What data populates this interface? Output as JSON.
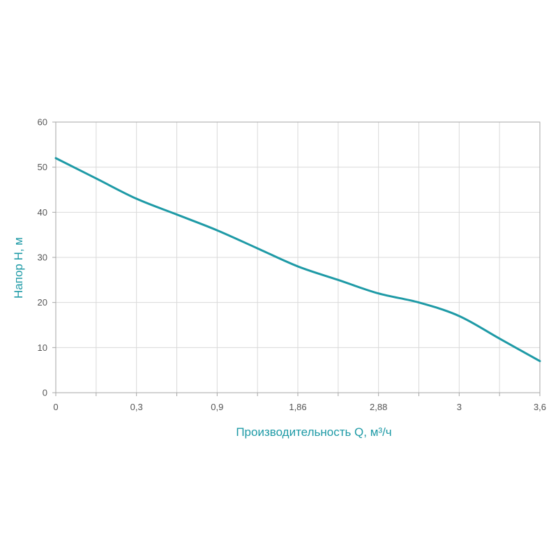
{
  "chart_data": {
    "type": "line",
    "xlabel": "Производительность Q, м³/ч",
    "ylabel": "Напор H, м",
    "x_tick_labels": [
      "0",
      "0,3",
      "0,9",
      "1,86",
      "2,88",
      "3",
      "3,6"
    ],
    "y_ticks": [
      0,
      10,
      20,
      30,
      40,
      50,
      60
    ],
    "ylim": [
      0,
      60
    ],
    "grid": true,
    "series": [
      {
        "x_ticks_index": [
          0,
          0.5,
          1,
          1.5,
          2,
          2.5,
          3,
          3.5,
          4,
          4.5,
          5,
          5.5,
          6
        ],
        "values": [
          52,
          47.5,
          43,
          39.5,
          36,
          32,
          28,
          25,
          22,
          20,
          17,
          12,
          7
        ]
      }
    ],
    "colors": {
      "line": "#1e9aa6",
      "axis_title": "#1e9aa6",
      "grid": "#d9d9d9",
      "frame": "#a6a6a6",
      "tick_text": "#555555"
    }
  }
}
